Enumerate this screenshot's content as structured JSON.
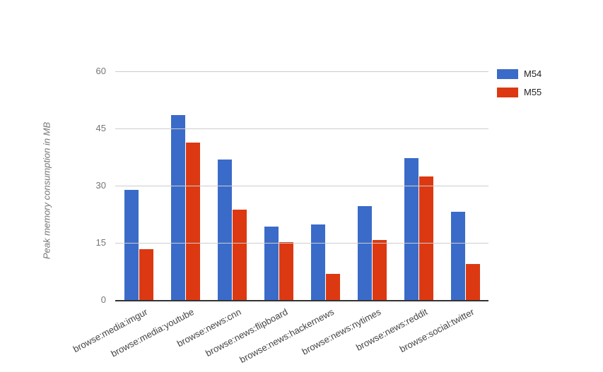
{
  "chart_data": {
    "type": "bar",
    "title": "",
    "xlabel": "",
    "ylabel": "Peak memory consumption in MB",
    "ylim": [
      0,
      60
    ],
    "yticks": [
      0,
      15,
      30,
      45,
      60
    ],
    "grid": true,
    "legend_position": "top-right",
    "background": "#ffffff",
    "categories": [
      "browse:media:imgur",
      "browse:media:youtube",
      "browse:news:cnn",
      "browse:news:flipboard",
      "browse:news:hackernews",
      "browse:news:nytimes",
      "browse:news:reddit",
      "browse:social:twitter"
    ],
    "series": [
      {
        "name": "M54",
        "color": "#3B6BC9",
        "values": [
          28.9,
          48.5,
          36.9,
          19.2,
          19.9,
          24.6,
          37.2,
          23.2
        ]
      },
      {
        "name": "M55",
        "color": "#DC3912",
        "values": [
          13.4,
          41.3,
          23.7,
          15.2,
          6.9,
          15.8,
          32.5,
          9.5
        ]
      }
    ],
    "colors": {
      "grid": "#cccccc",
      "axis_line": "#333333",
      "tick_text": "#757575",
      "category_text": "#444444",
      "ylabel_text": "#757575",
      "legend_text": "#222222"
    }
  }
}
